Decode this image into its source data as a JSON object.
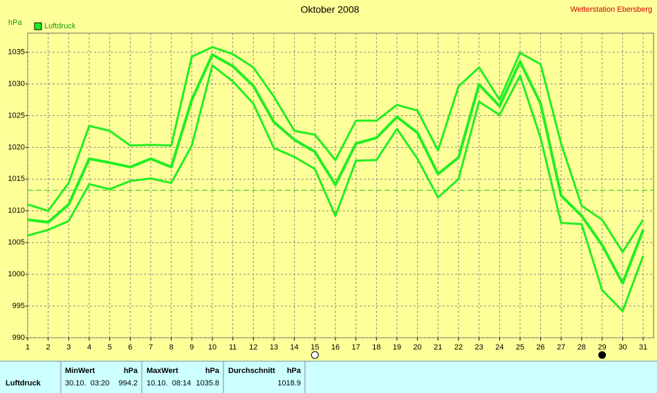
{
  "chart_data": {
    "type": "line",
    "title": "Oktober 2008",
    "station": "Wetterstation Ebersberg",
    "y_unit": "hPa",
    "x": [
      1,
      2,
      3,
      4,
      5,
      6,
      7,
      8,
      9,
      10,
      11,
      12,
      13,
      14,
      15,
      16,
      17,
      18,
      19,
      20,
      21,
      22,
      23,
      24,
      25,
      26,
      27,
      28,
      29,
      30,
      31
    ],
    "series": [
      {
        "name": "Luftdruck",
        "color": "#22ee22",
        "values": [
          1008.6,
          1008.2,
          1011.0,
          1018.2,
          1017.6,
          1016.9,
          1018.2,
          1016.9,
          1027.5,
          1034.6,
          1032.8,
          1029.7,
          1024.0,
          1021.2,
          1019.3,
          1014.1,
          1020.6,
          1021.5,
          1024.8,
          1022.3,
          1015.8,
          1018.4,
          1029.9,
          1026.5,
          1033.5,
          1026.9,
          1012.4,
          1009.2,
          1004.6,
          998.6,
          1007.0
        ]
      },
      {
        "color": "#22ee22",
        "values": [
          1011.0,
          1010.0,
          1014.4,
          1023.4,
          1022.6,
          1020.3,
          1020.4,
          1020.3,
          1034.3,
          1035.8,
          1034.7,
          1032.6,
          1028.0,
          1022.6,
          1022.0,
          1018.0,
          1024.2,
          1024.2,
          1026.7,
          1025.8,
          1019.5,
          1029.6,
          1032.6,
          1027.5,
          1034.9,
          1033.1,
          1020.6,
          1010.8,
          1008.6,
          1003.5,
          1008.6
        ]
      },
      {
        "color": "#22ee22",
        "values": [
          1006.1,
          1007.0,
          1008.4,
          1014.2,
          1013.4,
          1014.7,
          1015.1,
          1014.4,
          1020.3,
          1032.9,
          1030.4,
          1026.9,
          1019.9,
          1018.5,
          1016.6,
          1009.2,
          1017.9,
          1018.0,
          1022.9,
          1018.2,
          1012.1,
          1015.0,
          1027.2,
          1025.1,
          1031.3,
          1021.5,
          1008.1,
          1007.9,
          997.5,
          994.2,
          1002.9
        ]
      }
    ],
    "reference_line": 1013.25,
    "full_moon": 15,
    "new_moon": 29,
    "xlim": [
      1,
      31
    ],
    "xticks": [
      1,
      2,
      3,
      4,
      5,
      6,
      7,
      8,
      9,
      10,
      11,
      12,
      13,
      14,
      15,
      16,
      17,
      18,
      19,
      20,
      21,
      22,
      23,
      24,
      25,
      26,
      27,
      28,
      29,
      30,
      31
    ],
    "ylim": [
      990,
      1038
    ],
    "yticks": [
      990,
      995,
      1000,
      1005,
      1010,
      1015,
      1020,
      1025,
      1030,
      1035
    ],
    "grid": true
  },
  "table": {
    "columns": [
      {
        "name": "MinWert",
        "unit": "hPa"
      },
      {
        "name": "MaxWert",
        "unit": "hPa"
      },
      {
        "name": "Durchschnitt",
        "unit": "hPa"
      }
    ],
    "rows": [
      {
        "label": "Luftdruck",
        "min_time": "30.10.  03:20",
        "min": "994.2",
        "max_time": "10.10.  08:14",
        "max": "1035.8",
        "avg": "1018.9"
      }
    ]
  }
}
